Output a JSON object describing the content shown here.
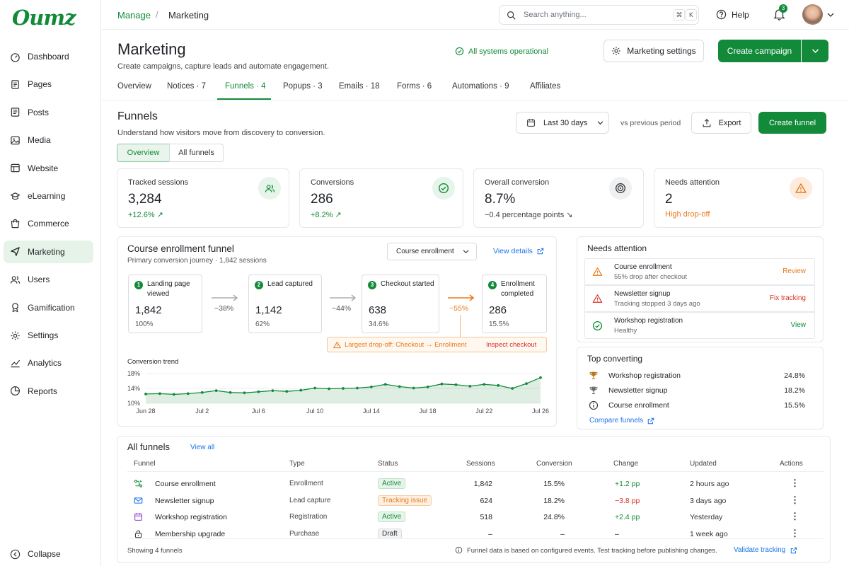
{
  "brand": {
    "logo": "Oumz"
  },
  "sidebar": {
    "items": [
      {
        "label": "Dashboard",
        "icon": "dashboard-icon"
      },
      {
        "label": "Pages",
        "icon": "pages-icon"
      },
      {
        "label": "Posts",
        "icon": "posts-icon"
      },
      {
        "label": "Media",
        "icon": "media-icon"
      },
      {
        "label": "Website",
        "icon": "website-icon"
      },
      {
        "label": "eLearning",
        "icon": "elearning-icon"
      },
      {
        "label": "Commerce",
        "icon": "commerce-icon"
      },
      {
        "label": "Marketing",
        "icon": "marketing-icon",
        "active": true
      },
      {
        "label": "Users",
        "icon": "users-icon"
      },
      {
        "label": "Gamification",
        "icon": "gamification-icon"
      },
      {
        "label": "Settings",
        "icon": "settings-icon"
      },
      {
        "label": "Analytics",
        "icon": "analytics-icon"
      },
      {
        "label": "Reports",
        "icon": "reports-icon"
      }
    ],
    "collapse": "Collapse"
  },
  "topbar": {
    "crumb_root": "Manage",
    "crumb_sep": "/",
    "crumb_current": "Marketing",
    "search_placeholder": "Search anything...",
    "kbd1": "⌘",
    "kbd2": "K",
    "help": "Help",
    "notif_count": "3"
  },
  "header": {
    "title": "Marketing",
    "subtitle": "Create campaigns, capture leads and automate engagement.",
    "status": "All systems operational",
    "settings_btn": "Marketing settings",
    "create_btn": "Create campaign"
  },
  "tabs": [
    "Overview",
    "Notices · 7",
    "Funnels · 4",
    "Popups · 3",
    "Emails · 18",
    "Forms · 6",
    "Automations · 9",
    "Affiliates"
  ],
  "funnels": {
    "title": "Funnels",
    "subtitle": "Understand how visitors move from discovery to conversion.",
    "seg_overview": "Overview",
    "seg_all": "All funnels",
    "date_range": "Last 30 days",
    "compare": "vs previous period",
    "export": "Export",
    "create": "Create funnel"
  },
  "kpis": [
    {
      "label": "Tracked sessions",
      "value": "3,284",
      "sub": "+12.6% ↗",
      "color": "#128a3a",
      "icon": "users-icon"
    },
    {
      "label": "Conversions",
      "value": "286",
      "sub": "+8.2% ↗",
      "color": "#128a3a",
      "icon": "check-circle-icon"
    },
    {
      "label": "Overall conversion",
      "value": "8.7%",
      "sub": "−0.4 percentage points ↘",
      "color": "#444",
      "icon": "target-icon"
    },
    {
      "label": "Needs attention",
      "value": "2",
      "sub": "High drop-off",
      "color": "#ea7a1a",
      "icon": "warning-icon"
    }
  ],
  "funnel": {
    "title": "Course enrollment funnel",
    "subtitle": "Primary conversion journey · 1,842 sessions",
    "select": "Course enrollment",
    "view_details": "View details",
    "steps": [
      {
        "n": "1",
        "label": "Landing page viewed",
        "value": "1,842",
        "pct": "100%"
      },
      {
        "n": "2",
        "label": "Lead captured",
        "value": "1,142",
        "pct": "62%"
      },
      {
        "n": "3",
        "label": "Checkout started",
        "value": "638",
        "pct": "34.6%"
      },
      {
        "n": "4",
        "label": "Enrollment completed",
        "value": "286",
        "pct": "15.5%"
      }
    ],
    "drops": [
      "−38%",
      "−44%",
      "−55%"
    ],
    "alert": "Largest drop-off: Checkout → Enrollment",
    "alert_action": "Inspect checkout"
  },
  "chart_data": {
    "type": "area",
    "title": "Conversion trend",
    "x": [
      "Jun 28",
      "Jun 29",
      "Jun 30",
      "Jul 1",
      "Jul 2",
      "Jul 3",
      "Jul 4",
      "Jul 5",
      "Jul 6",
      "Jul 7",
      "Jul 8",
      "Jul 9",
      "Jul 10",
      "Jul 11",
      "Jul 12",
      "Jul 13",
      "Jul 14",
      "Jul 15",
      "Jul 16",
      "Jul 17",
      "Jul 18",
      "Jul 19",
      "Jul 20",
      "Jul 21",
      "Jul 22",
      "Jul 23",
      "Jul 24",
      "Jul 25",
      "Jul 26"
    ],
    "xticks": [
      "Jun 28",
      "Jul 2",
      "Jul 6",
      "Jul 10",
      "Jul 14",
      "Jul 18",
      "Jul 22",
      "Jul 26"
    ],
    "yticks": [
      "18%",
      "14%",
      "10%"
    ],
    "ylim": [
      10,
      18
    ],
    "grid": true,
    "series": [
      {
        "values": [
          12.5,
          12.6,
          12.4,
          12.6,
          12.9,
          13.4,
          12.9,
          12.8,
          13.1,
          13.4,
          13.2,
          13.5,
          14.1,
          13.9,
          14.0,
          14.1,
          14.4,
          15.1,
          14.5,
          14.1,
          14.4,
          15.2,
          15.0,
          14.6,
          15.1,
          14.8,
          14.0,
          15.3,
          16.9
        ]
      }
    ],
    "color": "#128a3a"
  },
  "needs_attention": {
    "title": "Needs attention",
    "items": [
      {
        "title": "Course enrollment",
        "sub": "55% drop after checkout",
        "action": "Review",
        "color": "#ea7a1a",
        "icon": "warning-icon"
      },
      {
        "title": "Newsletter signup",
        "sub": "Tracking stopped 3 days ago",
        "action": "Fix tracking",
        "color": "#d93025",
        "icon": "alert-icon"
      },
      {
        "title": "Workshop registration",
        "sub": "Healthy",
        "action": "View",
        "color": "#128a3a",
        "icon": "check-circle-icon"
      }
    ]
  },
  "top_converting": {
    "title": "Top converting",
    "items": [
      {
        "name": "Workshop registration",
        "value": "24.8%",
        "icon": "trophy-icon"
      },
      {
        "name": "Newsletter signup",
        "value": "18.2%",
        "icon": "trophy-icon"
      },
      {
        "name": "Course enrollment",
        "value": "15.5%",
        "icon": "info-icon"
      }
    ],
    "link": "Compare funnels"
  },
  "all_funnels": {
    "title": "All funnels",
    "view_all": "View all",
    "columns": [
      "Funnel",
      "Type",
      "Status",
      "Sessions",
      "Conversion",
      "Change",
      "Updated",
      "Actions"
    ],
    "rows": [
      {
        "name": "Course enrollment",
        "type": "Enrollment",
        "status": "Active",
        "sessions": "1,842",
        "conversion": "15.5%",
        "change": "+1.2 pp",
        "updated": "2 hours ago",
        "icon": "funnel-icon"
      },
      {
        "name": "Newsletter signup",
        "type": "Lead capture",
        "status": "Tracking issue",
        "sessions": "624",
        "conversion": "18.2%",
        "change": "−3.8 pp",
        "updated": "3 days ago",
        "icon": "mail-icon"
      },
      {
        "name": "Workshop registration",
        "type": "Registration",
        "status": "Active",
        "sessions": "518",
        "conversion": "24.8%",
        "change": "+2.4 pp",
        "updated": "Yesterday",
        "icon": "calendar-icon"
      },
      {
        "name": "Membership upgrade",
        "type": "Purchase",
        "status": "Draft",
        "sessions": "–",
        "conversion": "–",
        "change": "–",
        "updated": "1 week ago",
        "icon": "lock-icon"
      }
    ],
    "actions_glyph": "⋮",
    "footer_count": "Showing 4 funnels",
    "footer_note": "Funnel data is based on configured events. Test tracking before publishing changes.",
    "footer_link": "Validate tracking"
  }
}
